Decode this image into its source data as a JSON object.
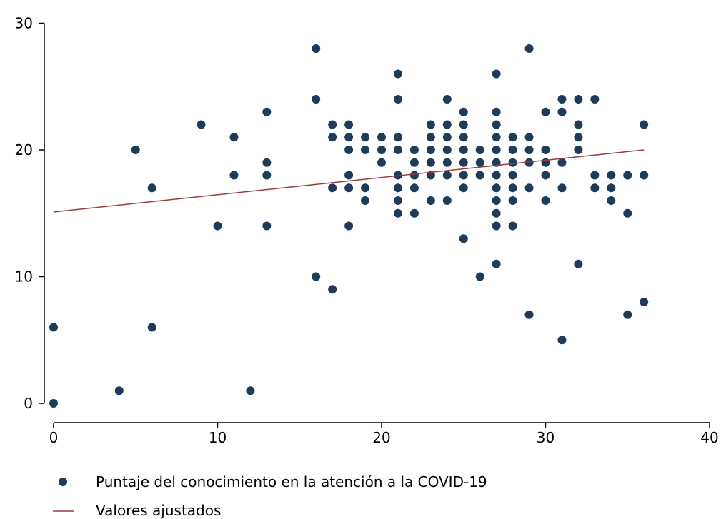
{
  "chart_data": {
    "type": "scatter",
    "title": "",
    "xlabel": "",
    "ylabel": "",
    "xlim": [
      0,
      40
    ],
    "ylim": [
      0,
      30
    ],
    "xticks": [
      0,
      10,
      20,
      30,
      40
    ],
    "yticks": [
      0,
      10,
      20,
      30
    ],
    "grid": false,
    "legend_position": "bottom",
    "colors": {
      "points": "#1f3b5a",
      "fit_line": "#9b3b3b",
      "axis": "#000000"
    },
    "series": [
      {
        "name": "Puntaje del conocimiento en la atención a la COVID-19",
        "kind": "scatter",
        "points": [
          [
            0,
            0
          ],
          [
            0,
            6
          ],
          [
            4,
            1
          ],
          [
            5,
            20
          ],
          [
            6,
            17
          ],
          [
            6,
            6
          ],
          [
            9,
            22
          ],
          [
            10,
            14
          ],
          [
            11,
            21
          ],
          [
            11,
            18
          ],
          [
            12,
            1
          ],
          [
            13,
            23
          ],
          [
            13,
            19
          ],
          [
            13,
            18
          ],
          [
            13,
            14
          ],
          [
            16,
            28
          ],
          [
            16,
            24
          ],
          [
            16,
            10
          ],
          [
            17,
            22
          ],
          [
            17,
            21
          ],
          [
            17,
            17
          ],
          [
            17,
            9
          ],
          [
            18,
            22
          ],
          [
            18,
            21
          ],
          [
            18,
            20
          ],
          [
            18,
            18
          ],
          [
            18,
            17
          ],
          [
            18,
            14
          ],
          [
            19,
            21
          ],
          [
            19,
            20
          ],
          [
            19,
            17
          ],
          [
            19,
            16
          ],
          [
            20,
            21
          ],
          [
            20,
            20
          ],
          [
            20,
            19
          ],
          [
            21,
            26
          ],
          [
            21,
            24
          ],
          [
            21,
            21
          ],
          [
            21,
            20
          ],
          [
            21,
            18
          ],
          [
            21,
            17
          ],
          [
            21,
            16
          ],
          [
            21,
            15
          ],
          [
            22,
            20
          ],
          [
            22,
            19
          ],
          [
            22,
            18
          ],
          [
            22,
            17
          ],
          [
            22,
            15
          ],
          [
            23,
            22
          ],
          [
            23,
            21
          ],
          [
            23,
            20
          ],
          [
            23,
            19
          ],
          [
            23,
            18
          ],
          [
            23,
            16
          ],
          [
            24,
            24
          ],
          [
            24,
            22
          ],
          [
            24,
            21
          ],
          [
            24,
            20
          ],
          [
            24,
            19
          ],
          [
            24,
            18
          ],
          [
            24,
            16
          ],
          [
            25,
            23
          ],
          [
            25,
            22
          ],
          [
            25,
            21
          ],
          [
            25,
            20
          ],
          [
            25,
            19
          ],
          [
            25,
            18
          ],
          [
            25,
            17
          ],
          [
            25,
            13
          ],
          [
            26,
            20
          ],
          [
            26,
            19
          ],
          [
            26,
            18
          ],
          [
            26,
            10
          ],
          [
            27,
            26
          ],
          [
            27,
            23
          ],
          [
            27,
            22
          ],
          [
            27,
            21
          ],
          [
            27,
            20
          ],
          [
            27,
            19
          ],
          [
            27,
            18
          ],
          [
            27,
            17
          ],
          [
            27,
            16
          ],
          [
            27,
            15
          ],
          [
            27,
            14
          ],
          [
            27,
            11
          ],
          [
            28,
            21
          ],
          [
            28,
            20
          ],
          [
            28,
            19
          ],
          [
            28,
            18
          ],
          [
            28,
            17
          ],
          [
            28,
            16
          ],
          [
            28,
            14
          ],
          [
            29,
            28
          ],
          [
            29,
            21
          ],
          [
            29,
            20
          ],
          [
            29,
            19
          ],
          [
            29,
            17
          ],
          [
            29,
            7
          ],
          [
            30,
            23
          ],
          [
            30,
            20
          ],
          [
            30,
            19
          ],
          [
            30,
            18
          ],
          [
            30,
            16
          ],
          [
            31,
            24
          ],
          [
            31,
            23
          ],
          [
            31,
            19
          ],
          [
            31,
            17
          ],
          [
            31,
            5
          ],
          [
            32,
            24
          ],
          [
            32,
            22
          ],
          [
            32,
            21
          ],
          [
            32,
            20
          ],
          [
            32,
            11
          ],
          [
            33,
            24
          ],
          [
            33,
            18
          ],
          [
            33,
            17
          ],
          [
            34,
            18
          ],
          [
            34,
            17
          ],
          [
            34,
            16
          ],
          [
            35,
            18
          ],
          [
            35,
            15
          ],
          [
            35,
            7
          ],
          [
            36,
            22
          ],
          [
            36,
            18
          ],
          [
            36,
            8
          ]
        ]
      },
      {
        "name": "Valores ajustados",
        "kind": "line",
        "points": [
          [
            0,
            15.1
          ],
          [
            36,
            20
          ]
        ]
      }
    ]
  }
}
